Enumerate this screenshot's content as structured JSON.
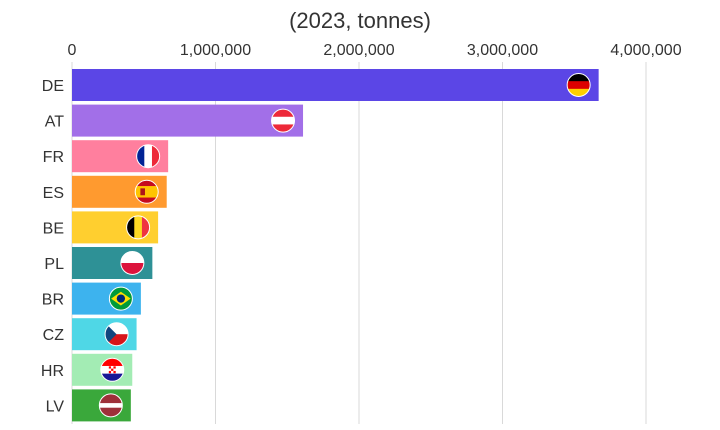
{
  "chart_data": {
    "type": "bar",
    "orientation": "horizontal",
    "title": "",
    "subtitle": "(2023, tonnes)",
    "xlabel": "",
    "ylabel": "",
    "xlim": [
      0,
      4000000
    ],
    "x_ticks": [
      0,
      1000000,
      2000000,
      3000000,
      4000000
    ],
    "x_tick_labels": [
      "0",
      "1,000,000",
      "2,000,000",
      "3,000,000",
      "4,000,000"
    ],
    "x_axis_position": "top",
    "grid": true,
    "legend": "none",
    "categories": [
      "DE",
      "AT",
      "FR",
      "ES",
      "BE",
      "PL",
      "BR",
      "CZ",
      "HR",
      "LV"
    ],
    "values": [
      3670000,
      1610000,
      670000,
      660000,
      600000,
      560000,
      480000,
      450000,
      420000,
      410000
    ],
    "colors": [
      "#5b46e6",
      "#a26fe8",
      "#ff7f9e",
      "#ff9a2f",
      "#ffcf2f",
      "#2e9196",
      "#3db3ee",
      "#4fd7e6",
      "#a3ecb4",
      "#3aa83b"
    ],
    "flag_icons": [
      "flag-de-icon",
      "flag-at-icon",
      "flag-fr-icon",
      "flag-es-icon",
      "flag-be-icon",
      "flag-pl-icon",
      "flag-br-icon",
      "flag-cz-icon",
      "flag-hr-icon",
      "flag-lv-icon"
    ]
  }
}
